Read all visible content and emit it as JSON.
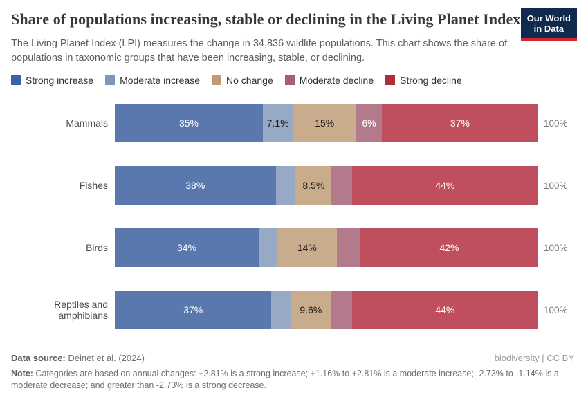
{
  "header": {
    "title": "Share of populations increasing, stable or declining in the Living Planet Index",
    "subtitle": "The Living Planet Index (LPI) measures the change in 34,836 wildlife populations. This chart shows the share of populations in taxonomic groups that have been increasing, stable, or declining.",
    "logo": {
      "line1": "Our World",
      "line2": "in Data",
      "bg_color": "#0f2a4e",
      "accent_color": "#cb2a33"
    }
  },
  "legend": {
    "items": [
      {
        "label": "Strong increase",
        "color": "#3d64a6"
      },
      {
        "label": "Moderate increase",
        "color": "#8095ba"
      },
      {
        "label": "No change",
        "color": "#c19b72"
      },
      {
        "label": "Moderate decline",
        "color": "#a65e70"
      },
      {
        "label": "Strong decline",
        "color": "#ae2d3a"
      }
    ]
  },
  "chart_data": {
    "type": "bar",
    "stacked": true,
    "orientation": "horizontal",
    "unit": "%",
    "xlim": [
      0,
      100
    ],
    "legend_position": "top",
    "grid": false,
    "series_names": [
      "Strong increase",
      "Moderate increase",
      "No change",
      "Moderate decline",
      "Strong decline"
    ],
    "series_colors_bar": [
      "#5a78ae",
      "#98a9c5",
      "#c9ac8b",
      "#b37a8b",
      "#bf4e5e"
    ],
    "categories": [
      "Mammals",
      "Fishes",
      "Birds",
      "Reptiles and amphibians"
    ],
    "rows": [
      {
        "category": "Mammals",
        "values": [
          35,
          7.1,
          15,
          6,
          37
        ],
        "labels": [
          "35%",
          "7.1%",
          "15%",
          "6%",
          "37%"
        ],
        "total_label": "100%"
      },
      {
        "category": "Fishes",
        "values": [
          38,
          4.7,
          8.5,
          4.8,
          44
        ],
        "labels": [
          "38%",
          "",
          "8.5%",
          "",
          "44%"
        ],
        "total_label": "100%"
      },
      {
        "category": "Birds",
        "values": [
          34,
          4.4,
          14,
          5.6,
          42
        ],
        "labels": [
          "34%",
          "",
          "14%",
          "",
          "42%"
        ],
        "total_label": "100%"
      },
      {
        "category": "Reptiles and amphibians",
        "values": [
          37,
          4.5,
          9.6,
          4.9,
          44
        ],
        "labels": [
          "37%",
          "",
          "9.6%",
          "",
          "44%"
        ],
        "total_label": "100%"
      }
    ]
  },
  "footer": {
    "datasource_label": "Data source:",
    "datasource_value": " Deinet et al. (2024)",
    "license": "biodiversity | CC BY",
    "note_label": "Note:",
    "note_value": " Categories are based on annual changes: +2.81% is a strong increase; +1.16% to +2.81% is a moderate increase; -2.73% to -1.14% is a moderate decrease; and greater than -2.73% is a strong decrease."
  }
}
